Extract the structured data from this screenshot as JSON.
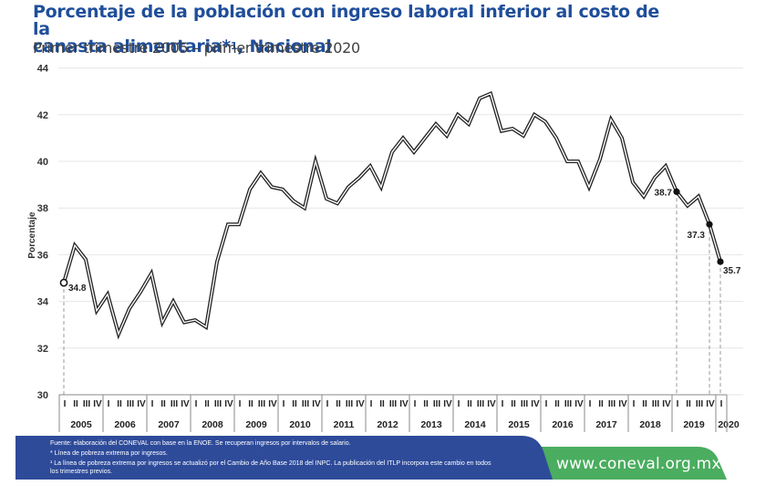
{
  "header": {
    "title_line1": "Porcentaje de la población con ingreso laboral inferior al costo de la",
    "title_line2_prefix": "canasta alimentaria*",
    "title_sup": "1",
    "title_line2_suffix": ", Nacional",
    "subtitle": "Primer trimestre 2005 – primer trimestre 2020"
  },
  "chart_data": {
    "type": "line",
    "title": "Porcentaje de la población con ingreso laboral inferior al costo de la canasta alimentaria*1, Nacional",
    "subtitle": "Primer trimestre 2005 – primer trimestre 2020",
    "ylabel": "Porcentaje",
    "xlabel": "",
    "ylim": [
      30,
      44
    ],
    "yticks": [
      30,
      32,
      34,
      36,
      38,
      40,
      42,
      44
    ],
    "grid": true,
    "quarter_labels": [
      "I",
      "II",
      "III",
      "IV"
    ],
    "years": [
      "2005",
      "2006",
      "2007",
      "2008",
      "2009",
      "2010",
      "2011",
      "2012",
      "2013",
      "2014",
      "2015",
      "2016",
      "2017",
      "2018",
      "2019",
      "2020"
    ],
    "series": [
      {
        "name": "Nacional",
        "values": [
          34.8,
          36.4,
          35.8,
          33.6,
          34.3,
          32.6,
          33.7,
          34.4,
          35.2,
          33.1,
          34.0,
          33.1,
          33.2,
          32.9,
          35.7,
          37.3,
          37.3,
          38.8,
          39.5,
          38.9,
          38.8,
          38.3,
          38.0,
          40.0,
          38.4,
          38.2,
          38.9,
          39.3,
          39.8,
          38.9,
          40.4,
          41.0,
          40.4,
          41.0,
          41.6,
          41.1,
          42.0,
          41.6,
          42.7,
          42.9,
          41.3,
          41.4,
          41.1,
          42.0,
          41.7,
          41.0,
          40.0,
          40.0,
          38.9,
          40.1,
          41.8,
          41.0,
          39.1,
          38.5,
          39.3,
          39.8,
          38.7,
          38.1,
          38.5,
          37.3,
          35.7
        ]
      }
    ],
    "annotations": [
      {
        "index": 0,
        "label": "34.8",
        "marker": "hollow"
      },
      {
        "index": 56,
        "label": "38.7",
        "marker": "filled"
      },
      {
        "index": 59,
        "label": "37.3",
        "marker": "filled"
      },
      {
        "index": 60,
        "label": "35.7",
        "marker": "filled"
      }
    ]
  },
  "footer": {
    "source": "Fuente: elaboración del CONEVAL con base en la ENOE. Se recuperan ingresos por intervalos de salario.",
    "note1": "* Línea de pobreza extrema por ingresos.",
    "note2_line1": "¹ La línea de pobreza extrema por ingresos se actualizó por el Cambio de Año Base 2018 del INPC. La publicación del ITLP incorpora este cambio en todos",
    "note2_line2": "los trimestres previos.",
    "url": "www.coneval.org.mx",
    "colors": {
      "blue": "#2e4b9a",
      "green": "#4aad5f",
      "title": "#1f4e9a"
    }
  }
}
